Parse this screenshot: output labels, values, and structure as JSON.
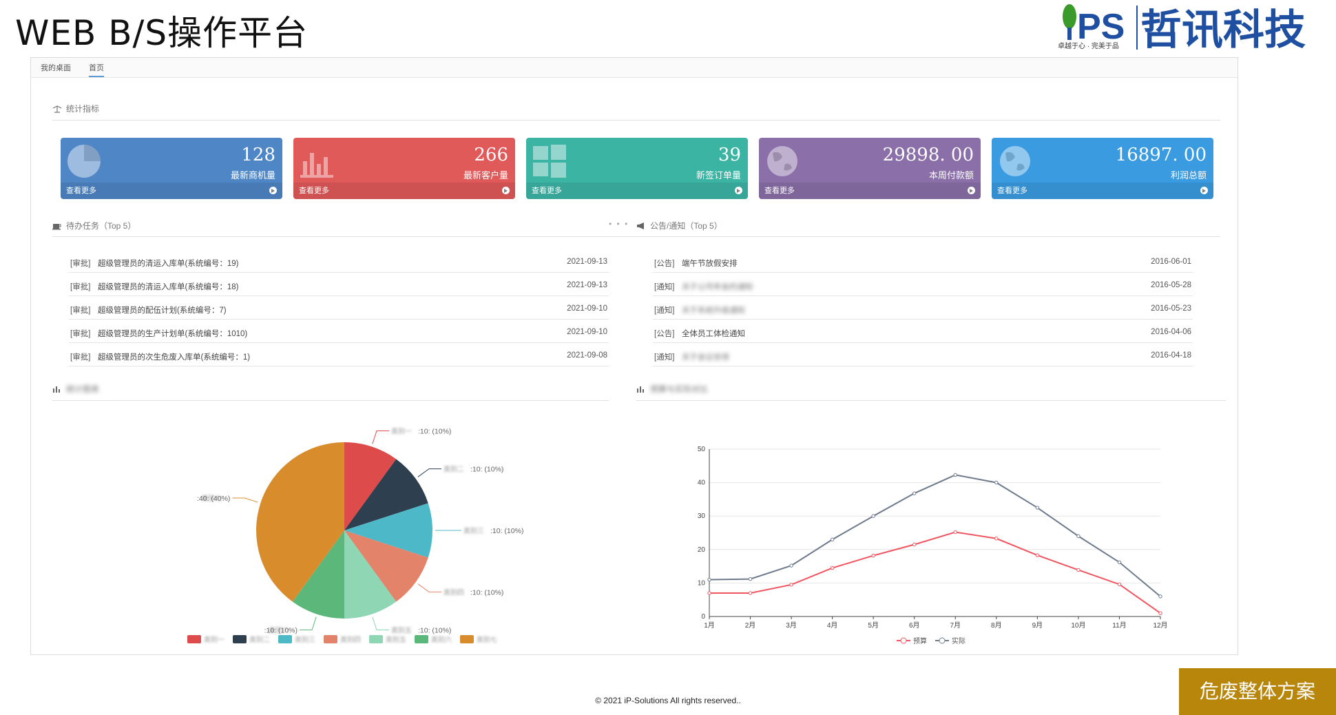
{
  "slide": {
    "title": "WEB B/S操作平台",
    "footer": "© 2021  iP-Solutions All rights reserved..",
    "badge": "危废整体方案",
    "logo": {
      "mark": "PS",
      "name": "哲讯科技",
      "tagline": "卓越于心 · 完美于品",
      "colors": {
        "green": "#3a9a2a",
        "blue": "#1f4fa0"
      }
    }
  },
  "tabs": [
    {
      "label": "我的桌面"
    },
    {
      "label": "首页",
      "active": true
    }
  ],
  "stats_section": {
    "title": "统计指标",
    "icon": "balance-scale-icon"
  },
  "cards": [
    {
      "value": "128",
      "label": "最新商机量",
      "more": "查看更多",
      "icon": "pie-chart-icon",
      "color": "#4f86c6"
    },
    {
      "value": "266",
      "label": "最新客户量",
      "more": "查看更多",
      "icon": "bar-chart-icon",
      "color": "#e05a5a"
    },
    {
      "value": "39",
      "label": "新签订单量",
      "more": "查看更多",
      "icon": "windows-icon",
      "color": "#3cb4a4"
    },
    {
      "value": "29898. 00",
      "label": "本周付款额",
      "more": "查看更多",
      "icon": "globe-icon",
      "color": "#8a6fa8"
    },
    {
      "value": "16897. 00",
      "label": "利润总额",
      "more": "查看更多",
      "icon": "globe-icon",
      "color": "#3a9be0"
    }
  ],
  "tasks": {
    "title": "待办任务（Top 5）",
    "icon": "coffee-icon",
    "items": [
      {
        "tag": "[审批]",
        "text": "超级管理员的清运入库单(系统编号：19)",
        "date": "2021-09-13"
      },
      {
        "tag": "[审批]",
        "text": "超级管理员的清运入库单(系统编号：18)",
        "date": "2021-09-13"
      },
      {
        "tag": "[审批]",
        "text": "超级管理员的配伍计划(系统编号：7)",
        "date": "2021-09-10"
      },
      {
        "tag": "[审批]",
        "text": "超级管理员的生产计划单(系统编号：1010)",
        "date": "2021-09-10"
      },
      {
        "tag": "[审批]",
        "text": "超级管理员的次生危废入库单(系统编号：1)",
        "date": "2021-09-08"
      }
    ]
  },
  "notices": {
    "title": "公告/通知（Top 5）",
    "icon": "bullhorn-icon",
    "items": [
      {
        "tag": "[公告]",
        "text": "端午节放假安排",
        "date": "2016-06-01",
        "blurred": false
      },
      {
        "tag": "[通知]",
        "text": "关于公司年会的通知",
        "date": "2016-05-28",
        "blurred": true
      },
      {
        "tag": "[通知]",
        "text": "关于系统升级通知",
        "date": "2016-05-23",
        "blurred": true
      },
      {
        "tag": "[公告]",
        "text": "全体员工体检通知",
        "date": "2016-04-06",
        "blurred": false
      },
      {
        "tag": "[通知]",
        "text": "关于会议安排",
        "date": "2016-04-18",
        "blurred": true
      }
    ]
  },
  "chart_data": [
    {
      "type": "pie",
      "title": "",
      "legend_position": "bottom",
      "slices": [
        {
          "name": "类别一",
          "value": 10,
          "label": ":10: (10%)",
          "color": "#dd4b4b"
        },
        {
          "name": "类别二",
          "value": 10,
          "label": ":10: (10%)",
          "color": "#2e3f4f"
        },
        {
          "name": "类别三",
          "value": 10,
          "label": ":10: (10%)",
          "color": "#4db8c8"
        },
        {
          "name": "类别四",
          "value": 10,
          "label": ":10: (10%)",
          "color": "#e2836a"
        },
        {
          "name": "类别五",
          "value": 10,
          "label": ":10: (10%)",
          "color": "#8ed6b4"
        },
        {
          "name": "类别六",
          "value": 10,
          "label": ":10: (10%)",
          "color": "#5cb87a"
        },
        {
          "name": "类别七",
          "value": 40,
          "label": ":40: (40%)",
          "color": "#d98c2c"
        }
      ]
    },
    {
      "type": "line",
      "title": "",
      "categories": [
        "1月",
        "2月",
        "3月",
        "4月",
        "5月",
        "6月",
        "7月",
        "8月",
        "9月",
        "10月",
        "11月",
        "12月"
      ],
      "yticks": [
        "0",
        "10",
        "20",
        "30",
        "40",
        "50"
      ],
      "ylim": [
        0,
        50
      ],
      "grid": true,
      "legend_position": "bottom",
      "series": [
        {
          "name": "预算",
          "color": "#f0555f",
          "values": [
            7,
            7,
            9.5,
            14.5,
            18.2,
            21.5,
            25.2,
            23.3,
            18.3,
            13.9,
            9.6,
            1
          ]
        },
        {
          "name": "实际",
          "color": "#6e7a8c",
          "values": [
            11,
            11.2,
            15.2,
            23,
            30,
            36.8,
            42.3,
            40,
            32.5,
            24,
            16.2,
            6
          ]
        }
      ]
    }
  ],
  "chart_headers": {
    "left": "统计图表",
    "right": "预算与实际对比"
  }
}
